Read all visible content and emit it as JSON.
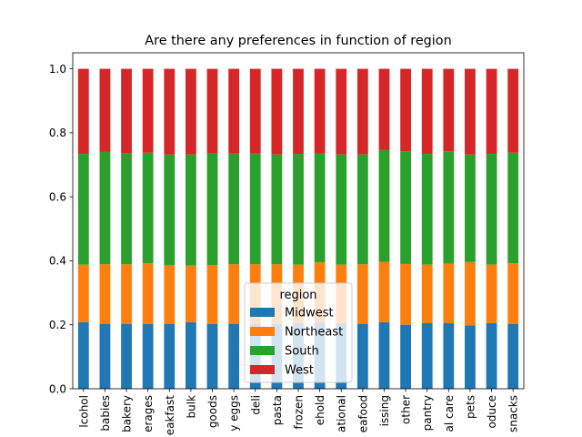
{
  "chart_data": {
    "type": "bar",
    "stacked": true,
    "title": "Are there any preferences in function of region",
    "xlabel": "",
    "ylabel": "",
    "ylim": [
      0,
      1.05
    ],
    "yticks": [
      "0.0",
      "0.2",
      "0.4",
      "0.6",
      "0.8",
      "1.0"
    ],
    "categories": [
      "lcohol",
      "babies",
      "bakery",
      "erages",
      "eakfast",
      "bulk",
      "goods",
      "y eggs",
      "deli",
      "pasta",
      "frozen",
      "ehold",
      "ational",
      "eafood",
      "issing",
      "other",
      "pantry",
      "al care",
      "pets",
      "oduce",
      "snacks"
    ],
    "series": [
      {
        "name": "Midwest",
        "color": "#1f77b4",
        "values": [
          0.208,
          0.203,
          0.203,
          0.203,
          0.203,
          0.208,
          0.203,
          0.203,
          0.203,
          0.203,
          0.205,
          0.208,
          0.205,
          0.203,
          0.208,
          0.2,
          0.205,
          0.205,
          0.198,
          0.205,
          0.203
        ]
      },
      {
        "name": "Northeast",
        "color": "#ff7f0e",
        "values": [
          0.18,
          0.186,
          0.186,
          0.189,
          0.183,
          0.177,
          0.183,
          0.186,
          0.186,
          0.186,
          0.183,
          0.187,
          0.183,
          0.186,
          0.189,
          0.19,
          0.183,
          0.186,
          0.198,
          0.183,
          0.189
        ]
      },
      {
        "name": "South",
        "color": "#2ca02c",
        "values": [
          0.346,
          0.351,
          0.346,
          0.346,
          0.346,
          0.347,
          0.351,
          0.346,
          0.346,
          0.343,
          0.346,
          0.342,
          0.344,
          0.343,
          0.35,
          0.352,
          0.346,
          0.351,
          0.336,
          0.346,
          0.346
        ]
      },
      {
        "name": "West",
        "color": "#d62728",
        "values": [
          0.266,
          0.26,
          0.265,
          0.262,
          0.268,
          0.268,
          0.263,
          0.265,
          0.265,
          0.268,
          0.266,
          0.263,
          0.268,
          0.268,
          0.253,
          0.258,
          0.266,
          0.258,
          0.268,
          0.266,
          0.262
        ]
      }
    ],
    "legend": {
      "title": "region",
      "placement": "lower-center"
    },
    "grid": false
  }
}
